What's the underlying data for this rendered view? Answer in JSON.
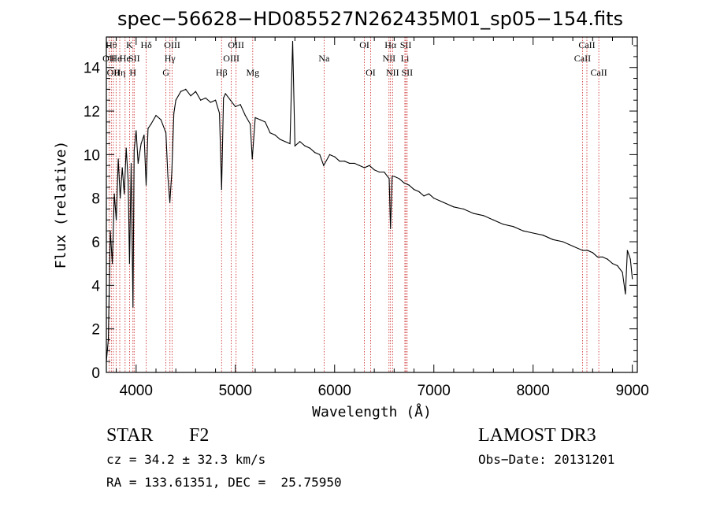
{
  "chart_data": {
    "type": "line",
    "title": "spec−56628−HD085527N262435M01_sp05−154.fits",
    "xlabel": "Wavelength (Å)",
    "ylabel": "Flux (relative)",
    "xlim": [
      3700,
      9050
    ],
    "ylim": [
      0,
      15.4
    ],
    "xticks": [
      4000,
      5000,
      6000,
      7000,
      8000,
      9000
    ],
    "yticks": [
      0,
      2,
      4,
      6,
      8,
      10,
      12,
      14
    ],
    "series": [
      {
        "name": "flux",
        "x": [
          3700,
          3720,
          3740,
          3760,
          3780,
          3800,
          3820,
          3840,
          3860,
          3880,
          3900,
          3920,
          3933,
          3950,
          3968,
          3980,
          4000,
          4020,
          4050,
          4080,
          4101,
          4120,
          4150,
          4200,
          4250,
          4300,
          4320,
          4340,
          4360,
          4380,
          4400,
          4450,
          4500,
          4550,
          4600,
          4650,
          4700,
          4750,
          4800,
          4840,
          4861,
          4880,
          4900,
          4950,
          5000,
          5050,
          5100,
          5150,
          5170,
          5200,
          5250,
          5300,
          5350,
          5400,
          5450,
          5500,
          5550,
          5577,
          5600,
          5650,
          5700,
          5750,
          5800,
          5850,
          5890,
          5950,
          6000,
          6050,
          6100,
          6150,
          6200,
          6250,
          6300,
          6350,
          6400,
          6450,
          6500,
          6550,
          6563,
          6580,
          6600,
          6650,
          6700,
          6750,
          6800,
          6850,
          6900,
          6950,
          7000,
          7100,
          7200,
          7300,
          7400,
          7500,
          7600,
          7700,
          7800,
          7900,
          8000,
          8100,
          8200,
          8300,
          8400,
          8500,
          8550,
          8600,
          8650,
          8700,
          8750,
          8800,
          8850,
          8900,
          8930,
          8950,
          8980,
          9000
        ],
        "y": [
          0.5,
          1.5,
          6.5,
          5.0,
          8.2,
          7.0,
          9.8,
          8.0,
          9.4,
          8.2,
          10.3,
          8.8,
          5.0,
          9.6,
          3.0,
          10.2,
          11.1,
          9.6,
          10.5,
          10.9,
          8.6,
          11.2,
          11.4,
          11.8,
          11.6,
          11.0,
          9.0,
          7.8,
          9.2,
          11.9,
          12.5,
          12.9,
          13.0,
          12.7,
          12.9,
          12.5,
          12.6,
          12.4,
          12.5,
          11.9,
          8.4,
          12.6,
          12.8,
          12.5,
          12.2,
          12.3,
          11.8,
          11.4,
          9.8,
          11.7,
          11.6,
          11.5,
          11.0,
          10.9,
          10.7,
          10.6,
          10.5,
          15.2,
          10.4,
          10.6,
          10.4,
          10.3,
          10.1,
          10.0,
          9.5,
          10.0,
          9.9,
          9.7,
          9.7,
          9.6,
          9.6,
          9.5,
          9.4,
          9.5,
          9.3,
          9.2,
          9.2,
          8.9,
          6.6,
          9.0,
          9.0,
          8.9,
          8.7,
          8.6,
          8.4,
          8.3,
          8.1,
          8.2,
          8.0,
          7.8,
          7.6,
          7.5,
          7.3,
          7.2,
          7.0,
          6.8,
          6.7,
          6.5,
          6.4,
          6.3,
          6.1,
          6.0,
          5.8,
          5.6,
          5.6,
          5.5,
          5.3,
          5.3,
          5.2,
          5.0,
          4.9,
          4.6,
          3.6,
          5.6,
          5.2,
          4.3
        ]
      }
    ],
    "lines": [
      {
        "w": 3727,
        "name": "OII",
        "row": 1
      },
      {
        "w": 3750,
        "name": "Hθ",
        "row": 0
      },
      {
        "w": 3771,
        "name": "OII",
        "row": 2
      },
      {
        "w": 3798,
        "name": "He",
        "row": 1
      },
      {
        "w": 3835,
        "name": "Hη",
        "row": 2
      },
      {
        "w": 3889,
        "name": "He",
        "row": 1
      },
      {
        "w": 3934,
        "name": "K",
        "row": 0
      },
      {
        "w": 3968,
        "name": "H",
        "row": 2
      },
      {
        "w": 3980,
        "name": "SII",
        "row": 1
      },
      {
        "w": 4102,
        "name": "Hδ",
        "row": 0
      },
      {
        "w": 4300,
        "name": "G",
        "row": 2
      },
      {
        "w": 4341,
        "name": "Hγ",
        "row": 1
      },
      {
        "w": 4363,
        "name": "OIII",
        "row": 0
      },
      {
        "w": 4861,
        "name": "Hβ",
        "row": 2
      },
      {
        "w": 4959,
        "name": "OIII",
        "row": 1
      },
      {
        "w": 5007,
        "name": "OIII",
        "row": 0
      },
      {
        "w": 5175,
        "name": "Mg",
        "row": 2
      },
      {
        "w": 5894,
        "name": "Na",
        "row": 1
      },
      {
        "w": 6300,
        "name": "OI",
        "row": 0
      },
      {
        "w": 6363,
        "name": "OI",
        "row": 2
      },
      {
        "w": 6548,
        "name": "NII",
        "row": 1
      },
      {
        "w": 6563,
        "name": "Hα",
        "row": 0
      },
      {
        "w": 6584,
        "name": "NII",
        "row": 2
      },
      {
        "w": 6708,
        "name": "Li",
        "row": 1
      },
      {
        "w": 6717,
        "name": "SII",
        "row": 0
      },
      {
        "w": 6731,
        "name": "SII",
        "row": 2
      },
      {
        "w": 8498,
        "name": "CaII",
        "row": 1
      },
      {
        "w": 8542,
        "name": "CaII",
        "row": 0
      },
      {
        "w": 8662,
        "name": "CaII",
        "row": 2
      }
    ]
  },
  "info": {
    "class_label": "STAR",
    "subclass": "F2",
    "redshift": "cz = 34.2 ± 32.3 km/s",
    "coords": "RA = 133.61351, DEC =  25.75950",
    "survey": "LAMOST DR3",
    "obs_date": "Obs−Date: 20131201"
  },
  "colors": {
    "line_marker": "#cc2222",
    "spectrum": "#000000"
  }
}
